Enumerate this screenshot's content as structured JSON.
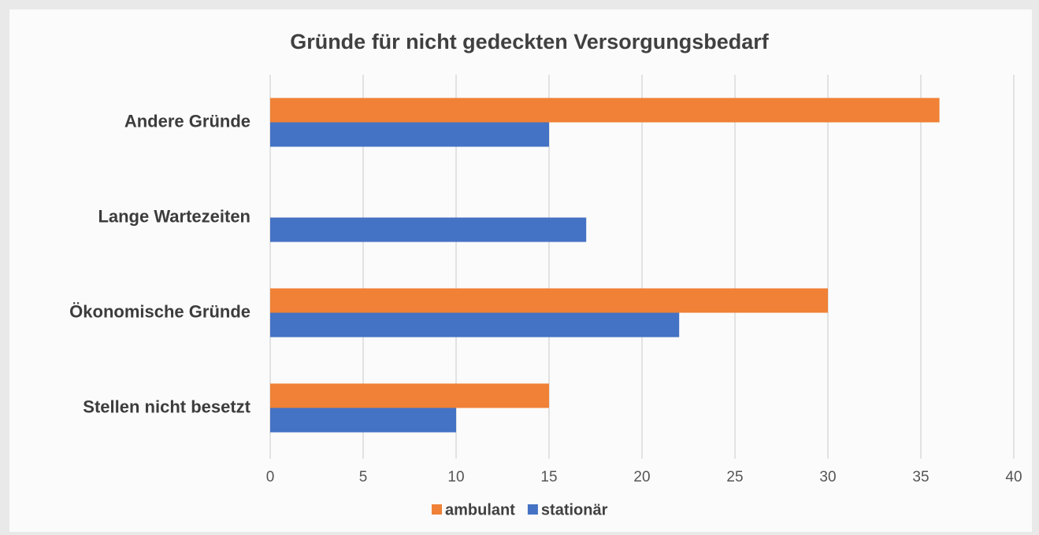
{
  "chart_data": {
    "type": "hbar",
    "title": "Gründe für nicht gedeckten Versorgungsbedarf",
    "categories": [
      "Andere Gründe",
      "Lange Wartezeiten",
      "Ökonomische Gründe",
      "Stellen nicht besetzt"
    ],
    "series": [
      {
        "name": "ambulant",
        "color": "#f08136",
        "values": [
          36,
          0,
          30,
          15
        ]
      },
      {
        "name": "stationär",
        "color": "#4472c4",
        "values": [
          15,
          17,
          22,
          10
        ]
      }
    ],
    "xlim": [
      0,
      40
    ],
    "xticks": [
      0,
      5,
      10,
      15,
      20,
      25,
      30,
      35,
      40
    ],
    "grid": true,
    "legend": "bottom"
  }
}
